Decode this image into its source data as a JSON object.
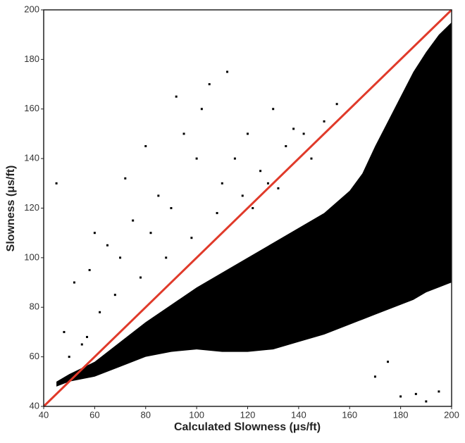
{
  "chart_data": {
    "type": "scatter",
    "xlabel": "Calculated Slowness (μs/ft)",
    "ylabel": "Slowness (μs/ft)",
    "xlim": [
      40,
      200
    ],
    "ylim": [
      40,
      200
    ],
    "xticks": [
      40,
      60,
      80,
      100,
      120,
      140,
      160,
      180,
      200
    ],
    "yticks": [
      40,
      60,
      80,
      100,
      120,
      140,
      160,
      180,
      200
    ],
    "density_band": {
      "color": "#000000",
      "x": [
        45,
        50,
        60,
        70,
        80,
        90,
        100,
        110,
        120,
        130,
        140,
        150,
        160,
        165,
        170,
        175,
        180,
        185,
        190,
        195,
        200
      ],
      "upper": [
        50,
        53,
        58,
        66,
        74,
        81,
        88,
        94,
        100,
        106,
        112,
        118,
        127,
        134,
        145,
        155,
        165,
        175,
        183,
        190,
        195
      ],
      "lower": [
        48,
        50,
        52,
        56,
        60,
        62,
        63,
        62,
        62,
        63,
        66,
        69,
        73,
        75,
        77,
        79,
        81,
        83,
        86,
        88,
        90
      ]
    },
    "points": {
      "color": "#000000",
      "x": [
        100,
        110,
        90,
        70,
        60,
        120,
        105,
        45,
        80,
        130,
        150,
        55,
        48,
        186,
        190,
        175,
        160,
        102,
        95,
        115,
        125,
        135,
        145,
        85,
        75,
        65,
        58,
        52,
        108,
        118,
        128,
        138,
        98,
        88,
        78,
        68,
        62,
        142,
        155,
        112,
        92,
        72,
        82,
        122,
        132,
        50,
        57,
        170,
        180,
        195
      ],
      "y": [
        140,
        130,
        120,
        100,
        110,
        150,
        170,
        130,
        145,
        160,
        155,
        65,
        70,
        45,
        42,
        58,
        85,
        160,
        150,
        140,
        135,
        145,
        140,
        125,
        115,
        105,
        95,
        90,
        118,
        125,
        130,
        152,
        108,
        100,
        92,
        85,
        78,
        150,
        162,
        175,
        165,
        132,
        110,
        120,
        128,
        60,
        68,
        52,
        44,
        46
      ]
    },
    "reference_line": {
      "color": "#e03a2a",
      "x": [
        40,
        200
      ],
      "y": [
        40,
        200
      ]
    }
  }
}
